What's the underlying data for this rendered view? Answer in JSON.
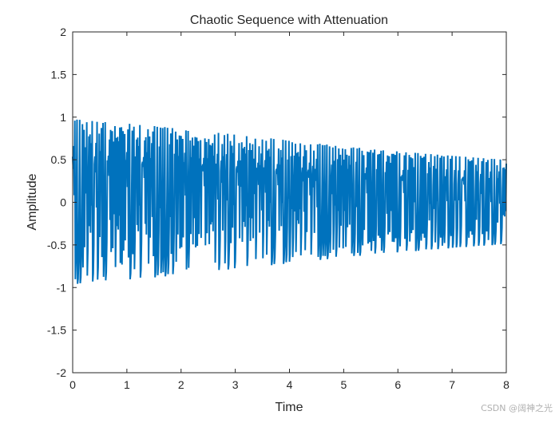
{
  "chart_data": {
    "type": "line",
    "title": "Chaotic Sequence with Attenuation",
    "xlabel": "Time",
    "ylabel": "Amplitude",
    "xlim": [
      0,
      8
    ],
    "ylim": [
      -2,
      2
    ],
    "xticks": [
      0,
      1,
      2,
      3,
      4,
      5,
      6,
      7,
      8
    ],
    "xtick_labels": [
      "0",
      "1",
      "2",
      "3",
      "4",
      "5",
      "6",
      "7",
      "8"
    ],
    "yticks": [
      2,
      1.5,
      1,
      0.5,
      0,
      -0.5,
      -1,
      -1.5,
      -2
    ],
    "ytick_labels": [
      "2",
      "1.5",
      "1",
      "0.5",
      "0",
      "-0.5",
      "-1",
      "-1.5",
      "-2"
    ],
    "grid": false,
    "series": [
      {
        "name": "chaotic sequence",
        "color": "#0072bd",
        "description": "chaotic oscillation between about -envelope and +envelope, envelope decaying from ~1.0 at t=0 to ~0.5 at t=8",
        "envelope": {
          "t": [
            0,
            1,
            2,
            3,
            4,
            5,
            6,
            7,
            8
          ],
          "amp": [
            0.98,
            0.93,
            0.87,
            0.8,
            0.73,
            0.66,
            0.6,
            0.55,
            0.5
          ]
        },
        "sample_step": 0.01
      }
    ]
  },
  "watermark": "CSDN @阔神之光"
}
